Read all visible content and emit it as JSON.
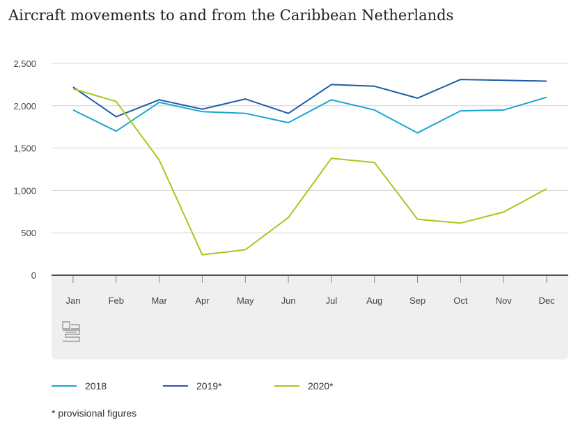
{
  "title": "Aircraft movements to and from the Caribbean Netherlands",
  "footnote": "* provisional figures",
  "logo": "cbs-logo",
  "chart_data": {
    "type": "line",
    "categories": [
      "Jan",
      "Feb",
      "Mar",
      "Apr",
      "May",
      "Jun",
      "Jul",
      "Aug",
      "Sep",
      "Oct",
      "Nov",
      "Dec"
    ],
    "ylim": [
      0,
      2500
    ],
    "yticks": [
      0,
      500,
      1000,
      1500,
      2000,
      2500
    ],
    "ytick_labels": [
      "0",
      "500",
      "1,000",
      "1,500",
      "2,000",
      "2,500"
    ],
    "grid": true,
    "legend_position": "bottom",
    "series": [
      {
        "name": "2018",
        "color": "#1aa6cf",
        "values": [
          1950,
          1700,
          2040,
          1930,
          1910,
          1800,
          2070,
          1950,
          1680,
          1940,
          1950,
          2100
        ]
      },
      {
        "name": "2019*",
        "color": "#1f5aa8",
        "values": [
          2220,
          1870,
          2070,
          1960,
          2080,
          1910,
          2250,
          2230,
          2090,
          2310,
          2300,
          2290
        ]
      },
      {
        "name": "2020*",
        "color": "#a4c91a",
        "values": [
          2200,
          2050,
          1360,
          240,
          300,
          680,
          1380,
          1330,
          660,
          615,
          745,
          1020
        ]
      }
    ]
  }
}
